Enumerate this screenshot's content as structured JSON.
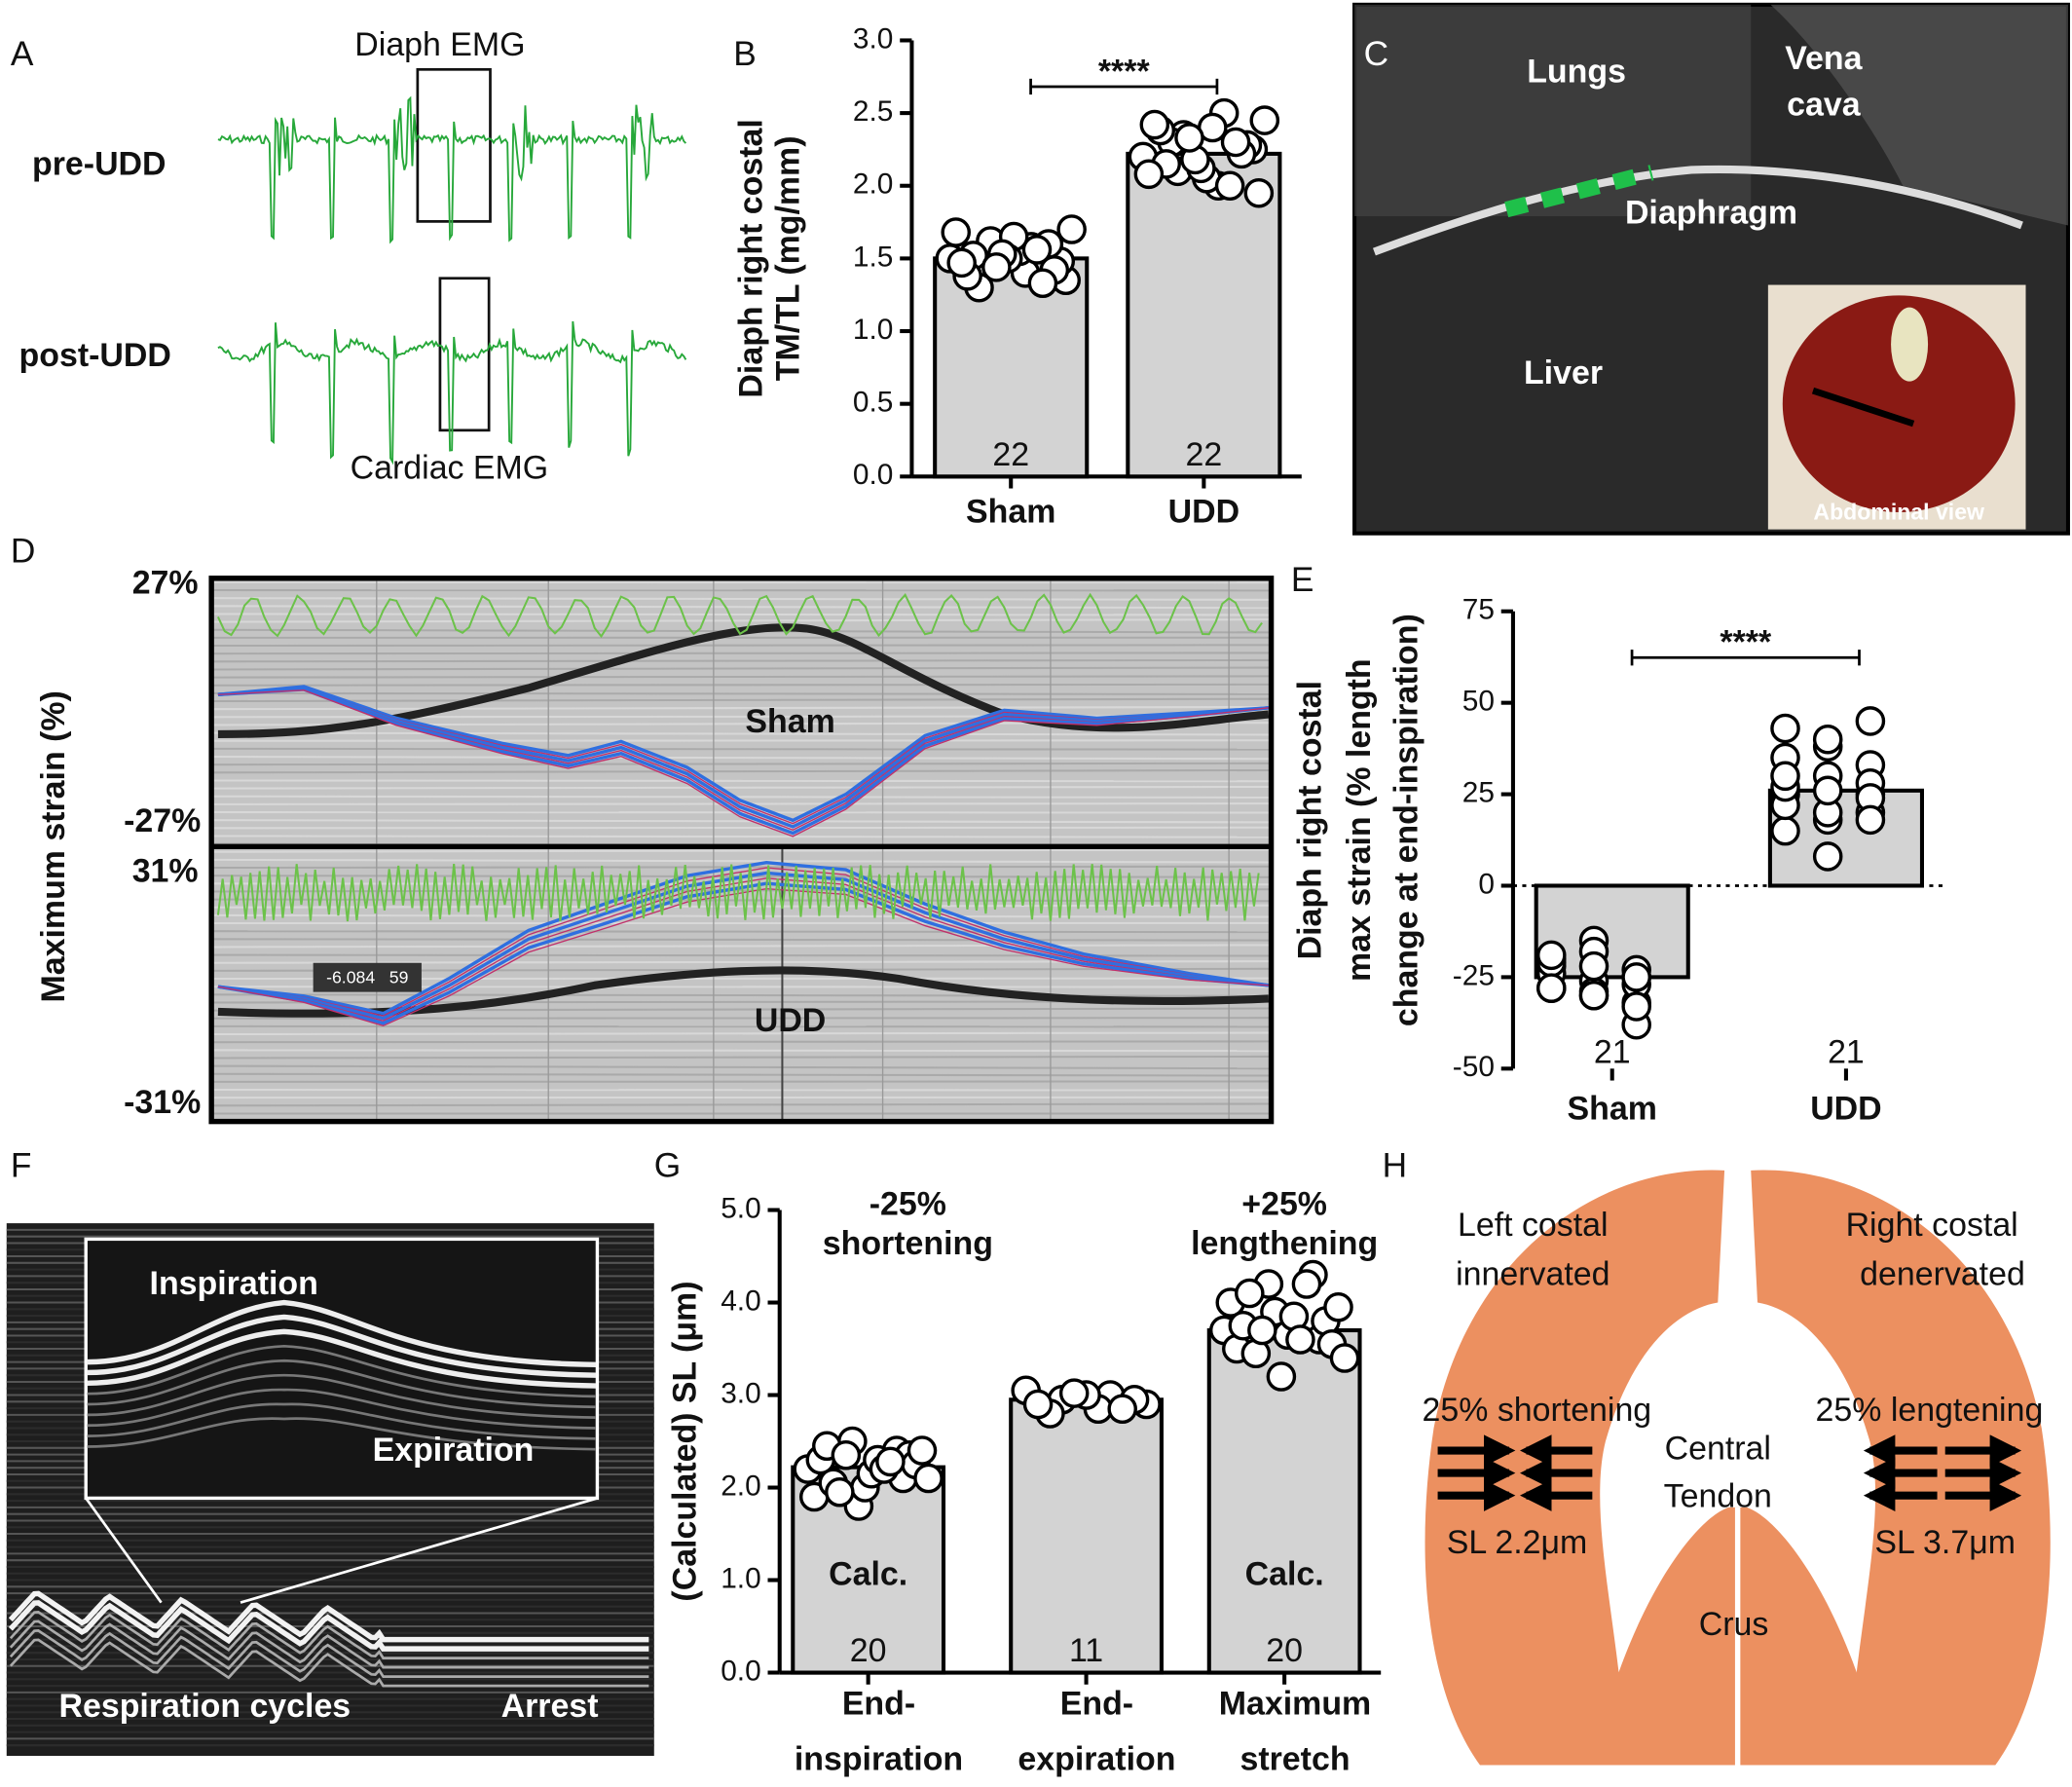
{
  "chart_data": [
    {
      "type": "bar",
      "panel": "B",
      "ylabel": [
        "Diaph right costal",
        "TM/TL (mg/mm)"
      ],
      "categories": [
        "Sham",
        "UDD"
      ],
      "values": [
        1.5,
        2.22
      ],
      "n": [
        22,
        22
      ],
      "color": "#d3d3d3",
      "points": [
        [
          1.5,
          1.62,
          1.58,
          1.7,
          1.45,
          1.4,
          1.35,
          1.3,
          1.55,
          1.48,
          1.52,
          1.65,
          1.42,
          1.38,
          1.5,
          1.6,
          1.47,
          1.53,
          1.33,
          1.68,
          1.44,
          1.56
        ],
        [
          2.2,
          2.35,
          2.5,
          2.45,
          2.1,
          2.0,
          1.95,
          2.3,
          2.4,
          2.25,
          2.15,
          2.05,
          2.28,
          2.38,
          2.12,
          2.22,
          2.42,
          2.18,
          2.3,
          2.08,
          2.33,
          2.0
        ]
      ],
      "significance": "****",
      "ylim": [
        0,
        3
      ],
      "yticks": [
        {
          "value": 0,
          "label": "0.0"
        },
        {
          "value": 0.5,
          "label": "0.5"
        },
        {
          "value": 1,
          "label": "1.0"
        },
        {
          "value": 1.5,
          "label": "1.5"
        },
        {
          "value": 2,
          "label": "2.0"
        },
        {
          "value": 2.5,
          "label": "2.5"
        },
        {
          "value": 3,
          "label": "3.0"
        }
      ]
    },
    {
      "type": "bar",
      "panel": "E",
      "ylabel": [
        "Diaph right costal",
        "max strain  (% length",
        "change at end-inspiration)"
      ],
      "categories": [
        "Sham",
        "UDD"
      ],
      "values": [
        -25,
        26
      ],
      "n": [
        21,
        21
      ],
      "color": "#d3d3d3",
      "points": [
        [
          -20,
          -15,
          -25,
          -28,
          -30,
          -38,
          -22,
          -26,
          -32,
          -24,
          -18,
          -27,
          -21,
          -29,
          -23,
          -19,
          -30,
          -25,
          -28,
          -22,
          -33
        ],
        [
          25,
          30,
          45,
          43,
          38,
          20,
          15,
          8,
          25,
          22,
          18,
          33,
          27,
          40,
          28,
          35,
          20,
          24,
          30,
          26,
          18
        ]
      ],
      "significance": "****",
      "ylim": [
        -50,
        75
      ],
      "yticks": [
        -50,
        -25,
        0,
        25,
        50,
        75
      ]
    },
    {
      "type": "bar",
      "panel": "G",
      "ylabel": [
        "(Calculated) SL (μm)"
      ],
      "categories": [
        [
          "End-",
          "inspiration"
        ],
        [
          "End-",
          "expiration"
        ],
        [
          "Maximum",
          "stretch"
        ]
      ],
      "values": [
        2.22,
        2.95,
        3.7
      ],
      "n": [
        20,
        11,
        20
      ],
      "color": "#d3d3d3",
      "bar_labels": [
        "Calc.",
        null,
        "Calc."
      ],
      "bar_annotations": [
        [
          "-25%",
          "shortening"
        ],
        null,
        [
          "+25%",
          "lengthening"
        ]
      ],
      "points": [
        [
          2.2,
          2.5,
          2.4,
          1.9,
          1.8,
          2.1,
          2.3,
          2.0,
          2.35,
          2.45,
          2.15,
          2.25,
          2.05,
          2.3,
          2.4,
          1.95,
          2.2,
          2.1,
          2.35,
          2.28
        ],
        [
          3.05,
          3.0,
          2.95,
          2.9,
          2.85,
          2.8,
          2.95,
          3.0,
          2.9,
          2.85,
          3.02
        ],
        [
          3.7,
          4.2,
          4.3,
          4.0,
          3.9,
          3.6,
          3.5,
          3.2,
          3.8,
          3.75,
          3.65,
          3.55,
          4.1,
          3.85,
          3.95,
          3.45,
          3.6,
          3.4,
          3.7,
          4.2
        ]
      ],
      "ylim": [
        0,
        5
      ],
      "yticks": [
        {
          "value": 0,
          "label": "0.0"
        },
        {
          "value": 1,
          "label": "1.0"
        },
        {
          "value": 2,
          "label": "2.0"
        },
        {
          "value": 3,
          "label": "3.0"
        },
        {
          "value": 4,
          "label": "4.0"
        },
        {
          "value": 5,
          "label": "5.0"
        }
      ]
    }
  ],
  "panels": {
    "A": {
      "letter": "A",
      "title": "Diaph EMG",
      "rows": [
        "pre-UDD",
        "post-UDD"
      ],
      "caption": "Cardiac EMG"
    },
    "C": {
      "letter": "C",
      "labels": [
        "Lungs",
        "Vena",
        "cava",
        "Diaphragm",
        "Liver"
      ],
      "inset": "Abdominal view"
    },
    "D": {
      "letter": "D",
      "ylabel": "Maximum strain (%)",
      "scales": [
        "27%",
        "-27%",
        "31%",
        "-31%"
      ],
      "groups": [
        "Sham",
        "UDD"
      ],
      "readout": "-6.084   59"
    },
    "F": {
      "letter": "F",
      "labels": [
        "Inspiration",
        "Expiration",
        "Respiration cycles",
        "Arrest"
      ]
    },
    "H": {
      "letter": "H",
      "left": [
        "Left costal",
        "innervated",
        "25% shortening",
        "SL 2.2μm"
      ],
      "right": [
        "Right costal",
        "denervated",
        "25% lengtening",
        "SL 3.7μm"
      ],
      "center": [
        "Central",
        "Tendon",
        "Crus"
      ]
    }
  }
}
